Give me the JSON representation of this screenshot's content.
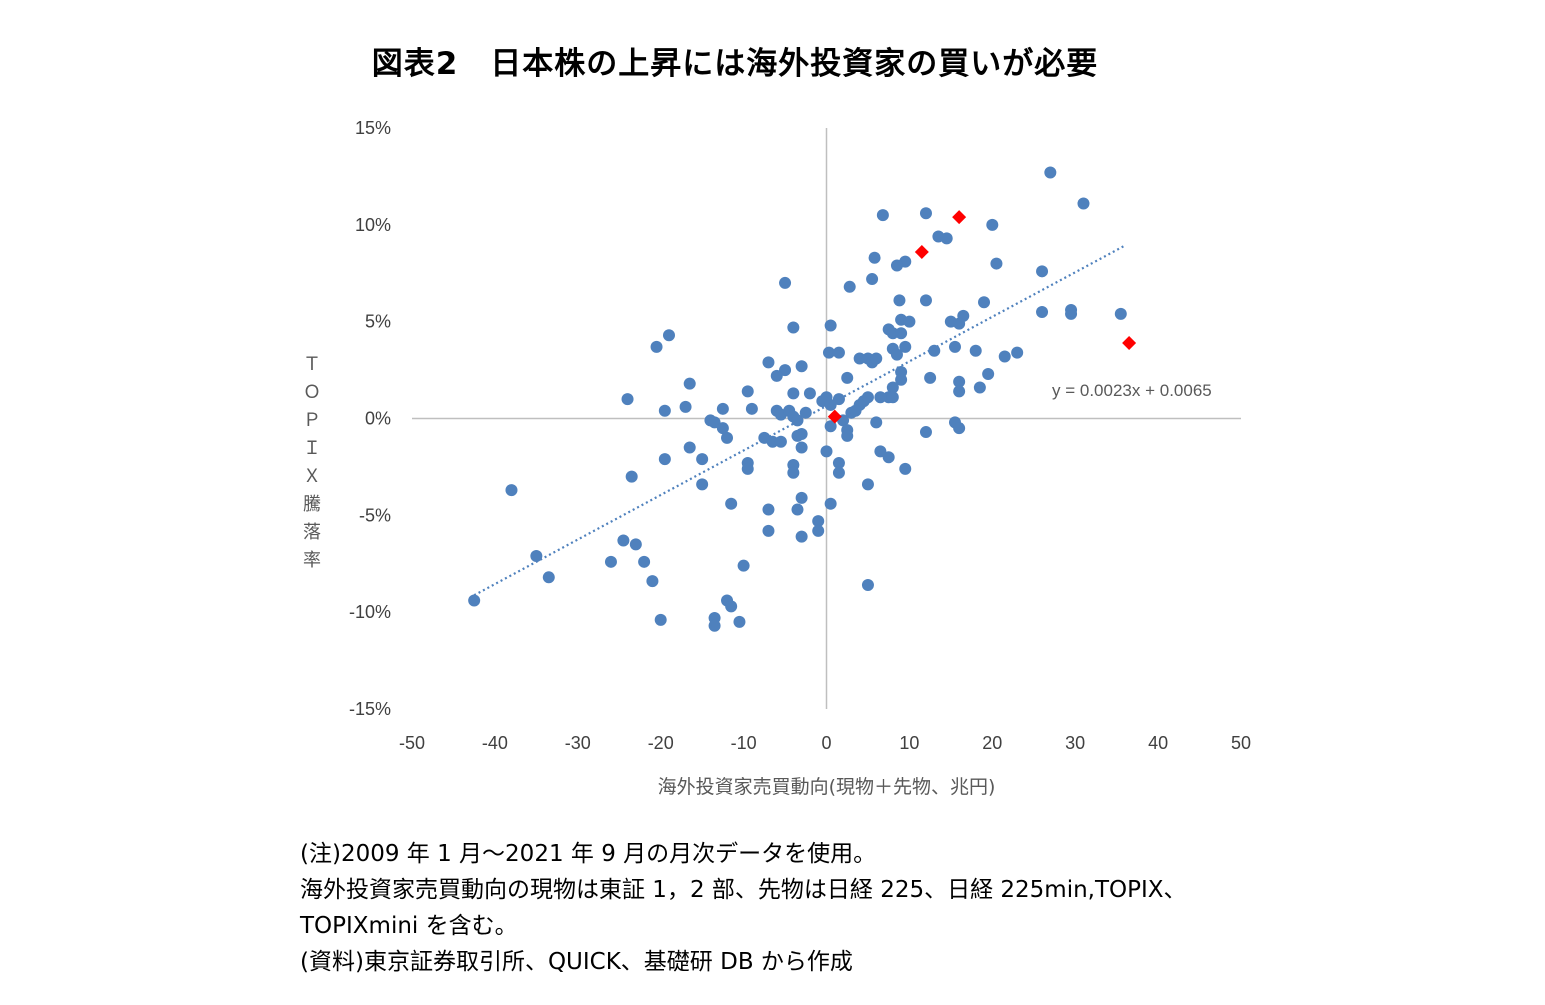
{
  "title": "図表2　日本株の上昇には海外投資家の買いが必要",
  "chart_data": {
    "type": "scatter",
    "title": "図表2　日本株の上昇には海外投資家の買いが必要",
    "xlabel": "海外投資家売買動向(現物＋先物、兆円)",
    "ylabel": "ＴＯＰＩＸ騰落率",
    "xlim": [
      -50,
      50
    ],
    "ylim": [
      -0.15,
      0.15
    ],
    "x_ticks": [
      "-50",
      "-40",
      "-30",
      "-20",
      "-10",
      "0",
      "10",
      "20",
      "30",
      "40",
      "50"
    ],
    "y_ticks": [
      "15%",
      "10%",
      "5%",
      "0%",
      "-5%",
      "-10%",
      "-15%"
    ],
    "grid": false,
    "legend": "none",
    "trendline": {
      "slope": 0.0023,
      "intercept": 0.0065,
      "x_range": [
        -42.5,
        36
      ],
      "label": "y = 0.0023x + 0.0065",
      "style": "dotted"
    },
    "colors": {
      "points": "#4F81BD",
      "highlight": "#FF0000",
      "trend": "#4F81BD",
      "axis": "#BFBFBF"
    },
    "series": [
      {
        "marker": "circle",
        "points": [
          [
            27.0,
            0.127
          ],
          [
            31.0,
            0.111
          ],
          [
            12.0,
            0.106
          ],
          [
            6.8,
            0.105
          ],
          [
            20.0,
            0.1
          ],
          [
            13.5,
            0.094
          ],
          [
            14.5,
            0.093
          ],
          [
            5.8,
            0.083
          ],
          [
            9.5,
            0.081
          ],
          [
            8.5,
            0.079
          ],
          [
            20.5,
            0.08
          ],
          [
            26.0,
            0.076
          ],
          [
            5.5,
            0.072
          ],
          [
            -5.0,
            0.07
          ],
          [
            2.8,
            0.068
          ],
          [
            8.8,
            0.061
          ],
          [
            12.0,
            0.061
          ],
          [
            19.0,
            0.06
          ],
          [
            26.0,
            0.055
          ],
          [
            29.5,
            0.056
          ],
          [
            29.5,
            0.054
          ],
          [
            35.5,
            0.054
          ],
          [
            16.5,
            0.053
          ],
          [
            9.0,
            0.051
          ],
          [
            10.0,
            0.05
          ],
          [
            15.0,
            0.05
          ],
          [
            16.0,
            0.049
          ],
          [
            7.5,
            0.046
          ],
          [
            8.0,
            0.044
          ],
          [
            9.0,
            0.044
          ],
          [
            -4.0,
            0.047
          ],
          [
            0.5,
            0.048
          ],
          [
            9.5,
            0.037
          ],
          [
            8.0,
            0.036
          ],
          [
            8.5,
            0.033
          ],
          [
            13.0,
            0.035
          ],
          [
            15.5,
            0.037
          ],
          [
            18.0,
            0.035
          ],
          [
            21.5,
            0.032
          ],
          [
            23.0,
            0.034
          ],
          [
            0.3,
            0.034
          ],
          [
            1.5,
            0.034
          ],
          [
            4.0,
            0.031
          ],
          [
            5.0,
            0.031
          ],
          [
            5.5,
            0.029
          ],
          [
            6.0,
            0.031
          ],
          [
            -7.0,
            0.029
          ],
          [
            -3.0,
            0.027
          ],
          [
            -5.0,
            0.025
          ],
          [
            -6.0,
            0.022
          ],
          [
            9.0,
            0.024
          ],
          [
            19.5,
            0.023
          ],
          [
            -20.5,
            0.037
          ],
          [
            -19.0,
            0.043
          ],
          [
            2.5,
            0.021
          ],
          [
            9.0,
            0.02
          ],
          [
            12.5,
            0.021
          ],
          [
            16.0,
            0.019
          ],
          [
            18.5,
            0.016
          ],
          [
            16.0,
            0.014
          ],
          [
            8.0,
            0.016
          ],
          [
            7.5,
            0.011
          ],
          [
            8.0,
            0.011
          ],
          [
            6.5,
            0.011
          ],
          [
            -16.5,
            0.018
          ],
          [
            -9.5,
            0.014
          ],
          [
            -4.0,
            0.013
          ],
          [
            -2.0,
            0.013
          ],
          [
            0.0,
            0.011
          ],
          [
            1.5,
            0.01
          ],
          [
            4.5,
            0.009
          ],
          [
            5.0,
            0.011
          ],
          [
            -24.0,
            0.01
          ],
          [
            -17.0,
            0.006
          ],
          [
            -19.5,
            0.004
          ],
          [
            -12.5,
            0.005
          ],
          [
            -9.0,
            0.005
          ],
          [
            -6.0,
            0.004
          ],
          [
            -5.5,
            0.002
          ],
          [
            -4.5,
            0.004
          ],
          [
            -4.0,
            0.001
          ],
          [
            -3.5,
            -0.001
          ],
          [
            -2.5,
            0.003
          ],
          [
            -0.5,
            0.009
          ],
          [
            0.5,
            0.007
          ],
          [
            3.0,
            0.003
          ],
          [
            4.0,
            0.007
          ],
          [
            3.5,
            0.004
          ],
          [
            2.0,
            -0.001
          ],
          [
            -14.0,
            -0.001
          ],
          [
            -13.5,
            -0.002
          ],
          [
            -12.5,
            -0.005
          ],
          [
            -12.0,
            -0.01
          ],
          [
            -7.5,
            -0.01
          ],
          [
            -6.5,
            -0.012
          ],
          [
            -5.5,
            -0.012
          ],
          [
            -3.5,
            -0.009
          ],
          [
            -3.0,
            -0.008
          ],
          [
            0.5,
            -0.004
          ],
          [
            2.5,
            -0.006
          ],
          [
            2.5,
            -0.009
          ],
          [
            6.0,
            -0.002
          ],
          [
            12.0,
            -0.007
          ],
          [
            15.5,
            -0.002
          ],
          [
            16.0,
            -0.005
          ],
          [
            -16.5,
            -0.015
          ],
          [
            -15.0,
            -0.021
          ],
          [
            -19.5,
            -0.021
          ],
          [
            -9.5,
            -0.023
          ],
          [
            -9.5,
            -0.026
          ],
          [
            -4.0,
            -0.024
          ],
          [
            -4.0,
            -0.028
          ],
          [
            -3.0,
            -0.015
          ],
          [
            0.0,
            -0.017
          ],
          [
            1.5,
            -0.023
          ],
          [
            1.5,
            -0.028
          ],
          [
            6.5,
            -0.017
          ],
          [
            7.5,
            -0.02
          ],
          [
            9.5,
            -0.026
          ],
          [
            -23.5,
            -0.03
          ],
          [
            -15.0,
            -0.034
          ],
          [
            -38.0,
            -0.037
          ],
          [
            -3.0,
            -0.041
          ],
          [
            5.0,
            -0.034
          ],
          [
            -11.5,
            -0.044
          ],
          [
            -7.0,
            -0.047
          ],
          [
            -3.5,
            -0.047
          ],
          [
            0.5,
            -0.044
          ],
          [
            -1.0,
            -0.053
          ],
          [
            -24.5,
            -0.063
          ],
          [
            -23.0,
            -0.065
          ],
          [
            -7.0,
            -0.058
          ],
          [
            -3.0,
            -0.061
          ],
          [
            -1.0,
            -0.058
          ],
          [
            -35.0,
            -0.071
          ],
          [
            -26.0,
            -0.074
          ],
          [
            -22.0,
            -0.074
          ],
          [
            -33.5,
            -0.082
          ],
          [
            -21.0,
            -0.084
          ],
          [
            -10.0,
            -0.076
          ],
          [
            5.0,
            -0.086
          ],
          [
            -42.5,
            -0.094
          ],
          [
            -12.0,
            -0.094
          ],
          [
            -11.5,
            -0.097
          ],
          [
            -20.0,
            -0.104
          ],
          [
            -13.5,
            -0.103
          ],
          [
            -13.5,
            -0.107
          ],
          [
            -10.5,
            -0.105
          ]
        ]
      },
      {
        "marker": "diamond",
        "points": [
          [
            16.0,
            0.104
          ],
          [
            11.5,
            0.086
          ],
          [
            36.5,
            0.039
          ],
          [
            1.0,
            0.001
          ]
        ]
      }
    ]
  },
  "notes": [
    "(注)2009 年 1 月～2021 年 9 月の月次データを使用。",
    "海外投資家売買動向の現物は東証 1，2 部、先物は日経 225、日経 225min,TOPIX、",
    "TOPIXmini を含む。",
    "(資料)東京証券取引所、QUICK、基礎研 DB から作成"
  ]
}
